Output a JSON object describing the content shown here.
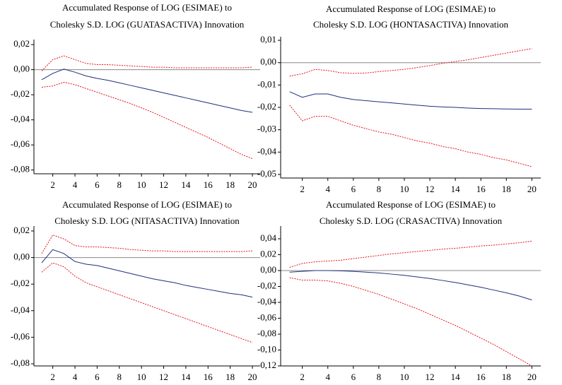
{
  "chart_data": [
    {
      "type": "line",
      "title": [
        "Accumulated Response of LOG (ESIMAE) to",
        "Cholesky S.D. LOG (GUATASACTIVA) Innovation"
      ],
      "x": [
        1,
        2,
        3,
        4,
        5,
        6,
        7,
        8,
        9,
        10,
        11,
        12,
        13,
        14,
        15,
        16,
        17,
        18,
        19,
        20
      ],
      "xlim": [
        0.3,
        20.7
      ],
      "xticks": [
        2,
        4,
        6,
        8,
        10,
        12,
        14,
        16,
        18,
        20
      ],
      "ylim": [
        -0.083,
        0.024
      ],
      "yticks": [
        {
          "value": 0.02,
          "label": "0,02"
        },
        {
          "value": 0,
          "label": "0,00"
        },
        {
          "value": -0.02,
          "label": "-0,02"
        },
        {
          "value": -0.04,
          "label": "-0,04"
        },
        {
          "value": -0.06,
          "label": "-0,06"
        },
        {
          "value": -0.08,
          "label": "-0,08"
        }
      ],
      "zero_line": true,
      "series": [
        {
          "color": "#1f2f7a",
          "dashed": false,
          "values": [
            -0.008,
            -0.003,
            0.0005,
            -0.002,
            -0.005,
            -0.007,
            -0.0085,
            -0.0105,
            -0.0125,
            -0.0145,
            -0.0165,
            -0.0185,
            -0.0205,
            -0.0225,
            -0.0245,
            -0.0265,
            -0.0285,
            -0.0305,
            -0.0325,
            -0.034
          ]
        },
        {
          "color": "#e8141b",
          "dashed": true,
          "values": [
            -0.001,
            0.008,
            0.011,
            0.008,
            0.005,
            0.004,
            0.004,
            0.0035,
            0.003,
            0.0025,
            0.002,
            0.002,
            0.0015,
            0.0015,
            0.0015,
            0.0015,
            0.0015,
            0.0015,
            0.0015,
            0.002
          ]
        },
        {
          "color": "#e8141b",
          "dashed": true,
          "values": [
            -0.014,
            -0.013,
            -0.01,
            -0.012,
            -0.015,
            -0.018,
            -0.021,
            -0.024,
            -0.027,
            -0.0305,
            -0.034,
            -0.038,
            -0.042,
            -0.046,
            -0.05,
            -0.054,
            -0.0585,
            -0.063,
            -0.0675,
            -0.071
          ]
        }
      ]
    },
    {
      "type": "line",
      "title": [
        "Accumulated Response of LOG (ESIMAE) to",
        "Cholesky S.D. LOG (HONTASACTIVA) Innovation"
      ],
      "x": [
        1,
        2,
        3,
        4,
        5,
        6,
        7,
        8,
        9,
        10,
        11,
        12,
        13,
        14,
        15,
        16,
        17,
        18,
        19,
        20
      ],
      "xlim": [
        0.3,
        20.7
      ],
      "xticks": [
        2,
        4,
        6,
        8,
        10,
        12,
        14,
        16,
        18,
        20
      ],
      "ylim": [
        -0.0516,
        0.0116
      ],
      "yticks": [
        {
          "value": 0.01,
          "label": "0,01"
        },
        {
          "value": 0,
          "label": "0,00"
        },
        {
          "value": -0.01,
          "label": "-0,01"
        },
        {
          "value": -0.02,
          "label": "-0,02"
        },
        {
          "value": -0.03,
          "label": "-0,03"
        },
        {
          "value": -0.04,
          "label": "-0,04"
        },
        {
          "value": -0.05,
          "label": "-0,05"
        }
      ],
      "zero_line": true,
      "series": [
        {
          "color": "#1f2f7a",
          "dashed": false,
          "values": [
            -0.013,
            -0.0155,
            -0.014,
            -0.014,
            -0.0155,
            -0.0165,
            -0.017,
            -0.0175,
            -0.018,
            -0.0185,
            -0.019,
            -0.0195,
            -0.0198,
            -0.02,
            -0.0203,
            -0.0205,
            -0.0206,
            -0.0207,
            -0.0208,
            -0.0208
          ]
        },
        {
          "color": "#e8141b",
          "dashed": true,
          "values": [
            -0.006,
            -0.005,
            -0.003,
            -0.0035,
            -0.0045,
            -0.0048,
            -0.0046,
            -0.004,
            -0.0035,
            -0.003,
            -0.0022,
            -0.0013,
            -0.0003,
            0.0005,
            0.0013,
            0.0023,
            0.0033,
            0.0043,
            0.0053,
            0.0063
          ]
        },
        {
          "color": "#e8141b",
          "dashed": true,
          "values": [
            -0.019,
            -0.026,
            -0.024,
            -0.024,
            -0.026,
            -0.028,
            -0.0295,
            -0.031,
            -0.032,
            -0.0335,
            -0.035,
            -0.036,
            -0.0375,
            -0.0385,
            -0.04,
            -0.041,
            -0.0425,
            -0.0435,
            -0.045,
            -0.0465
          ]
        }
      ]
    },
    {
      "type": "line",
      "title": [
        "Accumulated Response of LOG (ESIMAE) to",
        "Cholesky S.D. LOG (NITASACTIVA) Innovation"
      ],
      "x": [
        1,
        2,
        3,
        4,
        5,
        6,
        7,
        8,
        9,
        10,
        11,
        12,
        13,
        14,
        15,
        16,
        17,
        18,
        19,
        20
      ],
      "xlim": [
        0.3,
        20.7
      ],
      "xticks": [
        2,
        4,
        6,
        8,
        10,
        12,
        14,
        16,
        18,
        20
      ],
      "ylim": [
        -0.0816,
        0.0237
      ],
      "yticks": [
        {
          "value": 0.02,
          "label": "0,02"
        },
        {
          "value": 0,
          "label": "0,00"
        },
        {
          "value": -0.02,
          "label": "-0,02"
        },
        {
          "value": -0.04,
          "label": "-0,04"
        },
        {
          "value": -0.06,
          "label": "-0,06"
        },
        {
          "value": -0.08,
          "label": "-0,08"
        }
      ],
      "zero_line": true,
      "series": [
        {
          "color": "#1f2f7a",
          "dashed": false,
          "values": [
            -0.004,
            0.006,
            0.003,
            -0.003,
            -0.005,
            -0.006,
            -0.008,
            -0.01,
            -0.012,
            -0.014,
            -0.016,
            -0.0175,
            -0.019,
            -0.021,
            -0.0225,
            -0.024,
            -0.0255,
            -0.027,
            -0.028,
            -0.0298
          ]
        },
        {
          "color": "#e8141b",
          "dashed": true,
          "values": [
            0.003,
            0.017,
            0.014,
            0.009,
            0.008,
            0.008,
            0.0075,
            0.007,
            0.006,
            0.0055,
            0.005,
            0.005,
            0.0045,
            0.0045,
            0.0045,
            0.0045,
            0.0045,
            0.0045,
            0.0045,
            0.005
          ]
        },
        {
          "color": "#e8141b",
          "dashed": true,
          "values": [
            -0.011,
            -0.004,
            -0.007,
            -0.014,
            -0.019,
            -0.022,
            -0.025,
            -0.028,
            -0.031,
            -0.034,
            -0.037,
            -0.04,
            -0.043,
            -0.046,
            -0.049,
            -0.052,
            -0.055,
            -0.058,
            -0.061,
            -0.064
          ]
        }
      ]
    },
    {
      "type": "line",
      "title": [
        "Accumulated Response of LOG (ESIMAE) to",
        "Cholesky S.D. LOG (CRASACTIVA) Innovation"
      ],
      "x": [
        1,
        2,
        3,
        4,
        5,
        6,
        7,
        8,
        9,
        10,
        11,
        12,
        13,
        14,
        15,
        16,
        17,
        18,
        19,
        20
      ],
      "xlim": [
        0.3,
        20.7
      ],
      "xticks": [
        2,
        4,
        6,
        8,
        10,
        12,
        14,
        16,
        18,
        20
      ],
      "ylim": [
        -0.12,
        0.056
      ],
      "yticks": [
        {
          "value": 0.04,
          "label": "0,04"
        },
        {
          "value": 0.02,
          "label": "0,02"
        },
        {
          "value": 0,
          "label": "0,00"
        },
        {
          "value": -0.02,
          "label": "-0,02"
        },
        {
          "value": -0.04,
          "label": "-0,04"
        },
        {
          "value": -0.06,
          "label": "-0,06"
        },
        {
          "value": -0.08,
          "label": "-0,08"
        },
        {
          "value": -0.1,
          "label": "-0,10"
        },
        {
          "value": -0.12,
          "label": "-0,12"
        }
      ],
      "zero_line": true,
      "series": [
        {
          "color": "#1f2f7a",
          "dashed": false,
          "values": [
            -0.002,
            -0.001,
            0,
            0,
            -0.0003,
            -0.001,
            -0.002,
            -0.003,
            -0.0045,
            -0.006,
            -0.008,
            -0.01,
            -0.0125,
            -0.015,
            -0.018,
            -0.021,
            -0.0245,
            -0.028,
            -0.032,
            -0.037
          ]
        },
        {
          "color": "#e8141b",
          "dashed": true,
          "values": [
            0.004,
            0.009,
            0.011,
            0.012,
            0.013,
            0.015,
            0.017,
            0.019,
            0.021,
            0.0225,
            0.024,
            0.0255,
            0.027,
            0.028,
            0.0295,
            0.031,
            0.032,
            0.0335,
            0.035,
            0.037
          ]
        },
        {
          "color": "#e8141b",
          "dashed": true,
          "values": [
            -0.009,
            -0.012,
            -0.012,
            -0.013,
            -0.016,
            -0.02,
            -0.025,
            -0.03,
            -0.036,
            -0.042,
            -0.048,
            -0.055,
            -0.062,
            -0.069,
            -0.077,
            -0.085,
            -0.093,
            -0.102,
            -0.111,
            -0.12
          ]
        }
      ]
    }
  ]
}
